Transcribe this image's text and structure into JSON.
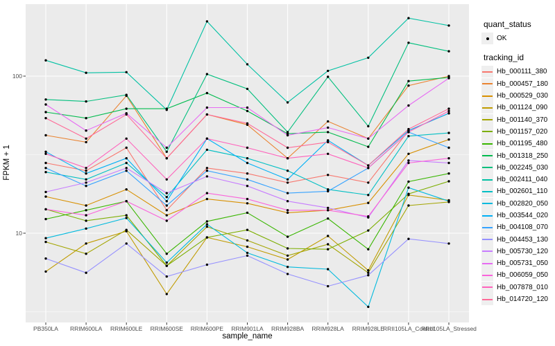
{
  "legend": {
    "quant_status_title": "quant_status",
    "quant_status_items": [
      {
        "label": "OK",
        "marker": "black-point"
      }
    ],
    "tracking_id_title": "tracking_id"
  },
  "colors": {
    "panel_bg": "#EBEBEB",
    "grid": "#FFFFFF",
    "tick_label": "#4D4D4D",
    "axis_title": "#000000",
    "marker": "#000000",
    "tick_mark": "#333333",
    "legend_key_bg": "#EFEFEF"
  },
  "chart_data": {
    "type": "line",
    "title": "",
    "xlabel": "sample_name",
    "ylabel": "FPKM + 1",
    "y_scale": "log10",
    "ylim": [
      2.7,
      290
    ],
    "y_major_ticks": [
      10,
      100
    ],
    "y_minor_gridlines": [
      3.162,
      31.62
    ],
    "grid": true,
    "legend_position": "right",
    "marker_meaning": "quant_status OK (black point at every sample)",
    "categories": [
      "PB350LA",
      "RRIM600LA",
      "RRIM600LE",
      "RRIM600SE",
      "RRIM600PE",
      "RRIM901LA",
      "RRIM928BA",
      "RRIM928LA",
      "RRIM928LE",
      "RRII105LA_Control",
      "RRII105LA_Stressed"
    ],
    "series": [
      {
        "name": "Hb_000111_380",
        "color": "#F8766D",
        "values": [
          28,
          25,
          35,
          14,
          26,
          24,
          21,
          23.5,
          21,
          45,
          58
        ]
      },
      {
        "name": "Hb_000457_180",
        "color": "#EA8331",
        "values": [
          42,
          38,
          75,
          30,
          57,
          49,
          30,
          51.5,
          40,
          87,
          100
        ]
      },
      {
        "name": "Hb_000529_030",
        "color": "#D89000",
        "values": [
          17.1,
          15,
          19,
          13,
          16.5,
          15.5,
          13.5,
          14,
          15.6,
          32,
          39.5
        ]
      },
      {
        "name": "Hb_001124_090",
        "color": "#C09B00",
        "values": [
          5.7,
          8.6,
          10.3,
          4.1,
          9.4,
          8.2,
          6.8,
          9.6,
          5.8,
          17.5,
          16.2
        ]
      },
      {
        "name": "Hb_001140_370",
        "color": "#A3A500",
        "values": [
          8.8,
          7.4,
          10.5,
          6.2,
          11,
          9,
          7.2,
          8.5,
          5.6,
          15,
          15.8
        ]
      },
      {
        "name": "Hb_001157_020",
        "color": "#7CAE00",
        "values": [
          14.2,
          12,
          13,
          6.2,
          9.4,
          10.5,
          8,
          7.9,
          10.4,
          17.8,
          21.4
        ]
      },
      {
        "name": "Hb_001195_480",
        "color": "#39B600",
        "values": [
          12.3,
          14,
          16,
          7.4,
          11.9,
          13.5,
          9.5,
          12.4,
          7.9,
          21.3,
          24
        ]
      },
      {
        "name": "Hb_001318_250",
        "color": "#00BB4E",
        "values": [
          59,
          54,
          62,
          62,
          78,
          60,
          43,
          44,
          35.5,
          93,
          98
        ]
      },
      {
        "name": "Hb_002245_030",
        "color": "#00BF7D",
        "values": [
          71,
          69,
          76,
          33,
          103,
          83,
          44,
          99,
          48,
          163,
          144
        ]
      },
      {
        "name": "Hb_002411_040",
        "color": "#00C1A3",
        "values": [
          126,
          105,
          106,
          61,
          223,
          119,
          68,
          108,
          131,
          234,
          210
        ]
      },
      {
        "name": "Hb_002601_110",
        "color": "#00BFC4",
        "values": [
          24.5,
          22,
          28,
          17,
          34,
          30,
          25,
          19,
          17.5,
          41.5,
          43.5
        ]
      },
      {
        "name": "Hb_002820_050",
        "color": "#00BADE",
        "values": [
          9.3,
          10.7,
          12.5,
          6.5,
          11.4,
          7.5,
          6.1,
          5.9,
          3.4,
          19.5,
          16
        ]
      },
      {
        "name": "Hb_003544_020",
        "color": "#00B0F6",
        "values": [
          33,
          24,
          30,
          16,
          40,
          28,
          22,
          39,
          27,
          45,
          58
        ]
      },
      {
        "name": "Hb_004108_070",
        "color": "#35A2FF",
        "values": [
          26,
          20,
          25,
          15,
          25,
          22,
          18,
          18.5,
          26,
          44,
          35
        ]
      },
      {
        "name": "Hb_004453_130",
        "color": "#9590FF",
        "values": [
          6.9,
          5.6,
          8.6,
          5.3,
          6.3,
          7.2,
          5.5,
          4.6,
          5.4,
          9.2,
          8.6
        ]
      },
      {
        "name": "Hb_005730_120",
        "color": "#C77CFF",
        "values": [
          18.3,
          21,
          26,
          18,
          23,
          20,
          16,
          14.5,
          12.6,
          29,
          28
        ]
      },
      {
        "name": "Hb_005731_050",
        "color": "#E76BF3",
        "values": [
          66,
          45,
          58,
          35,
          63,
          63,
          42,
          47,
          40,
          65,
          97
        ]
      },
      {
        "name": "Hb_006059_050",
        "color": "#FA62DB",
        "values": [
          14.2,
          13,
          16,
          12,
          18,
          16.5,
          14,
          14,
          12.8,
          28,
          30
        ]
      },
      {
        "name": "Hb_007878_010",
        "color": "#FF62BC",
        "values": [
          32,
          26,
          40,
          22,
          40,
          35,
          30,
          32,
          26,
          44,
          60
        ]
      },
      {
        "name": "Hb_014720_120",
        "color": "#FF6A98",
        "values": [
          54,
          40,
          57,
          30,
          57,
          50,
          35,
          38,
          27,
          46,
          62
        ]
      }
    ]
  }
}
